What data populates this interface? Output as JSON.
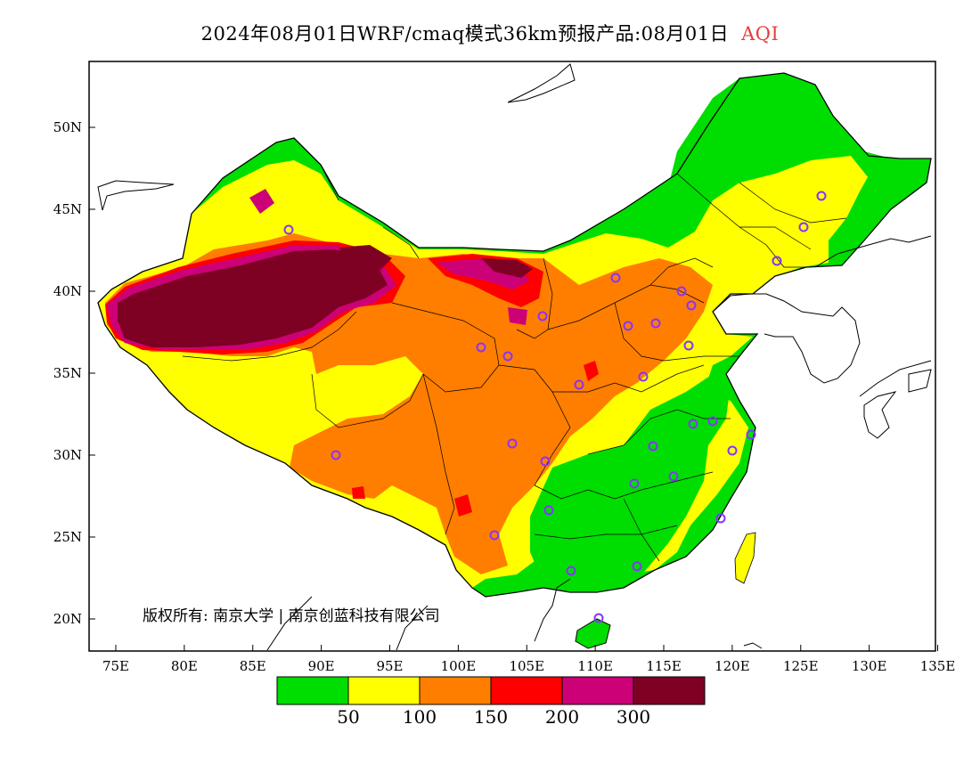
{
  "title": {
    "main": "2024年08月01日WRF/cmaq模式36km预报产品:08月01日",
    "product": "AQI"
  },
  "axes": {
    "lat_labels": [
      "50N",
      "45N",
      "40N",
      "35N",
      "30N",
      "25N",
      "20N"
    ],
    "lon_labels": [
      "75E",
      "80E",
      "85E",
      "90E",
      "95E",
      "100E",
      "105E",
      "110E",
      "115E",
      "120E",
      "125E",
      "130E",
      "135E"
    ]
  },
  "copyright": "版权所有: 南京大学 | 南京创蓝科技有限公司",
  "legend": {
    "colors": [
      "#00dd00",
      "#ffff00",
      "#ff7e00",
      "#ff0000",
      "#cc0077",
      "#7e0023"
    ],
    "breaks": [
      "50",
      "100",
      "150",
      "200",
      "300"
    ]
  },
  "map_settings": {
    "lon_range": [
      73,
      135
    ],
    "lat_range": [
      18,
      54
    ],
    "station_marker": "circle"
  }
}
